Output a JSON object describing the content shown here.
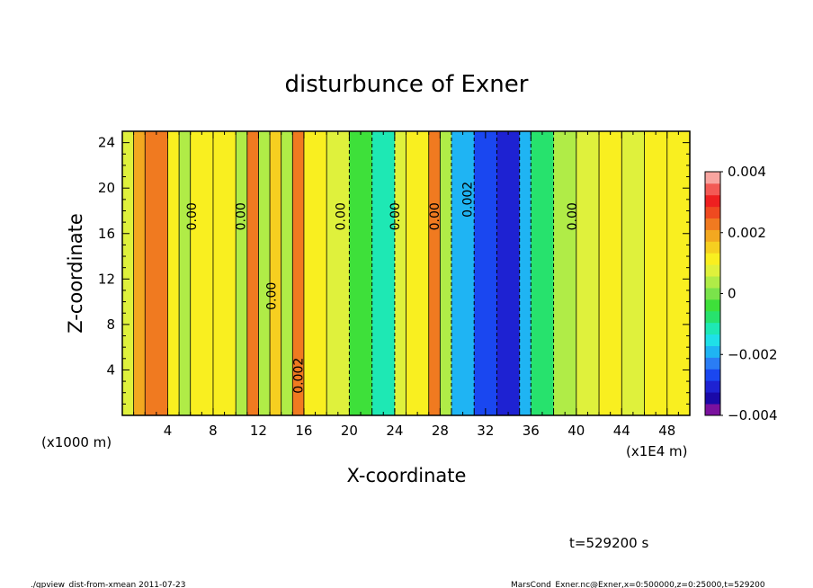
{
  "chart_data": {
    "type": "heatmap",
    "title": "disturbunce of Exner",
    "xlabel": "X-coordinate",
    "ylabel": "Z-coordinate",
    "xlim": [
      0,
      50
    ],
    "ylim": [
      0,
      25
    ],
    "x_ticks": [
      4,
      8,
      12,
      16,
      20,
      24,
      28,
      32,
      36,
      40,
      44,
      48
    ],
    "y_ticks": [
      4,
      8,
      12,
      16,
      20,
      24
    ],
    "x_unit_left": "(x1000 m)",
    "x_unit_right": "(x1E4 m)",
    "colorbar": {
      "range": [
        -0.004,
        0.004
      ],
      "tick_labels": [
        "0.004",
        "0.002",
        "0",
        "−0.002",
        "−0.004"
      ],
      "colors": [
        "#7a119e",
        "#1a09a8",
        "#1e22d2",
        "#1a47f0",
        "#2a7df5",
        "#1fb4f3",
        "#1fe0e8",
        "#1ee8b4",
        "#27e26d",
        "#3ee03a",
        "#7ae34b",
        "#b0ec47",
        "#dff13c",
        "#f9ef20",
        "#f6cf20",
        "#f3a820",
        "#f07a20",
        "#ef4a20",
        "#ee2020",
        "#f35a55",
        "#f8a5a0"
      ]
    },
    "columns": [
      {
        "x0": 0,
        "x1": 1,
        "v": 0.0008
      },
      {
        "x0": 1,
        "x1": 2,
        "v": 0.0018
      },
      {
        "x0": 2,
        "x1": 4,
        "v": 0.0023
      },
      {
        "x0": 4,
        "x1": 5,
        "v": 0.0013
      },
      {
        "x0": 5,
        "x1": 6,
        "v": 0.0002
      },
      {
        "x0": 6,
        "x1": 8,
        "v": 0.001
      },
      {
        "x0": 8,
        "x1": 10,
        "v": 0.0012
      },
      {
        "x0": 10,
        "x1": 11,
        "v": 0.0003
      },
      {
        "x0": 11,
        "x1": 12,
        "v": 0.0022
      },
      {
        "x0": 12,
        "x1": 13,
        "v": 0.0005
      },
      {
        "x0": 13,
        "x1": 14,
        "v": 0.0014
      },
      {
        "x0": 14,
        "x1": 15,
        "v": 0.0003
      },
      {
        "x0": 15,
        "x1": 16,
        "v": 0.0024
      },
      {
        "x0": 16,
        "x1": 18,
        "v": 0.0011
      },
      {
        "x0": 18,
        "x1": 20,
        "v": 0.0006
      },
      {
        "x0": 20,
        "x1": 22,
        "v": -0.0004
      },
      {
        "x0": 22,
        "x1": 24,
        "v": -0.0012
      },
      {
        "x0": 24,
        "x1": 25,
        "v": 0.0006
      },
      {
        "x0": 25,
        "x1": 27,
        "v": 0.0012
      },
      {
        "x0": 27,
        "x1": 28,
        "v": 0.0023
      },
      {
        "x0": 28,
        "x1": 29,
        "v": 0.0004
      },
      {
        "x0": 29,
        "x1": 31,
        "v": -0.002
      },
      {
        "x0": 31,
        "x1": 33,
        "v": -0.0026
      },
      {
        "x0": 33,
        "x1": 35,
        "v": -0.0031
      },
      {
        "x0": 35,
        "x1": 36,
        "v": -0.0018
      },
      {
        "x0": 36,
        "x1": 38,
        "v": -0.0007
      },
      {
        "x0": 38,
        "x1": 40,
        "v": 0.0002
      },
      {
        "x0": 40,
        "x1": 42,
        "v": 0.0009
      },
      {
        "x0": 42,
        "x1": 44,
        "v": 0.0013
      },
      {
        "x0": 44,
        "x1": 46,
        "v": 0.0008
      },
      {
        "x0": 46,
        "x1": 48,
        "v": 0.0013
      },
      {
        "x0": 48,
        "x1": 50,
        "v": 0.001
      }
    ],
    "contour_labels": [
      {
        "x": 6.5,
        "y": 17.5,
        "text": "0.00"
      },
      {
        "x": 10.8,
        "y": 17.5,
        "text": "0.00"
      },
      {
        "x": 13.5,
        "y": 10.5,
        "text": "0.00"
      },
      {
        "x": 15.9,
        "y": 3.5,
        "text": "0.002"
      },
      {
        "x": 19.6,
        "y": 17.5,
        "text": "0.00"
      },
      {
        "x": 24.4,
        "y": 17.5,
        "text": "0.00"
      },
      {
        "x": 27.9,
        "y": 17.5,
        "text": "0.00"
      },
      {
        "x": 30.8,
        "y": 19.0,
        "text": "0.002"
      },
      {
        "x": 40.0,
        "y": 17.5,
        "text": "0.00"
      }
    ],
    "annotations": [
      {
        "text": "t=529200 s"
      }
    ]
  },
  "footer": {
    "left": "./gpview_dist-from-xmean  2011-07-23",
    "right": "MarsCond_Exner.nc@Exner,x=0:500000,z=0:25000,t=529200"
  }
}
